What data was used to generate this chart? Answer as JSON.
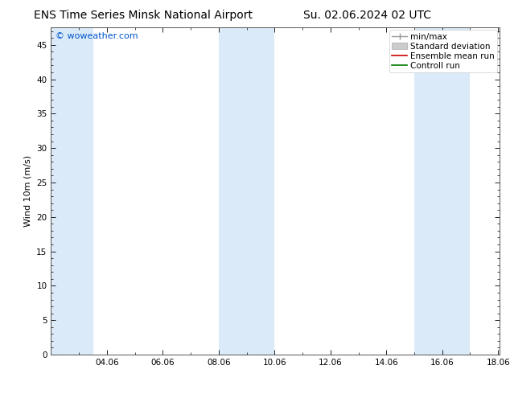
{
  "title_left": "ENS Time Series Minsk National Airport",
  "title_right": "Su. 02.06.2024 02 UTC",
  "ylabel": "Wind 10m (m/s)",
  "watermark": "© woweather.com",
  "watermark_color": "#0055cc",
  "xlim_start": 2.0,
  "xlim_end": 18.06,
  "ylim_min": 0,
  "ylim_max": 47.5,
  "yticks": [
    0,
    5,
    10,
    15,
    20,
    25,
    30,
    35,
    40,
    45
  ],
  "xtick_labels": [
    "04.06",
    "06.06",
    "08.06",
    "10.06",
    "12.06",
    "14.06",
    "16.06",
    "18.06"
  ],
  "xtick_positions": [
    4.0,
    6.0,
    8.0,
    10.0,
    12.0,
    14.0,
    16.0,
    18.0
  ],
  "shaded_bands": [
    {
      "x_start": 2.0,
      "x_end": 3.5,
      "color": "#daeaf8"
    },
    {
      "x_start": 8.0,
      "x_end": 10.0,
      "color": "#daeaf8"
    },
    {
      "x_start": 15.0,
      "x_end": 17.0,
      "color": "#daeaf8"
    }
  ],
  "bg_color": "#ffffff",
  "plot_bg_color": "#ffffff",
  "spine_color": "#555555",
  "tick_color": "#000000",
  "title_fontsize": 10,
  "axis_label_fontsize": 8,
  "tick_fontsize": 7.5,
  "legend_fontsize": 7.5,
  "watermark_fontsize": 8
}
